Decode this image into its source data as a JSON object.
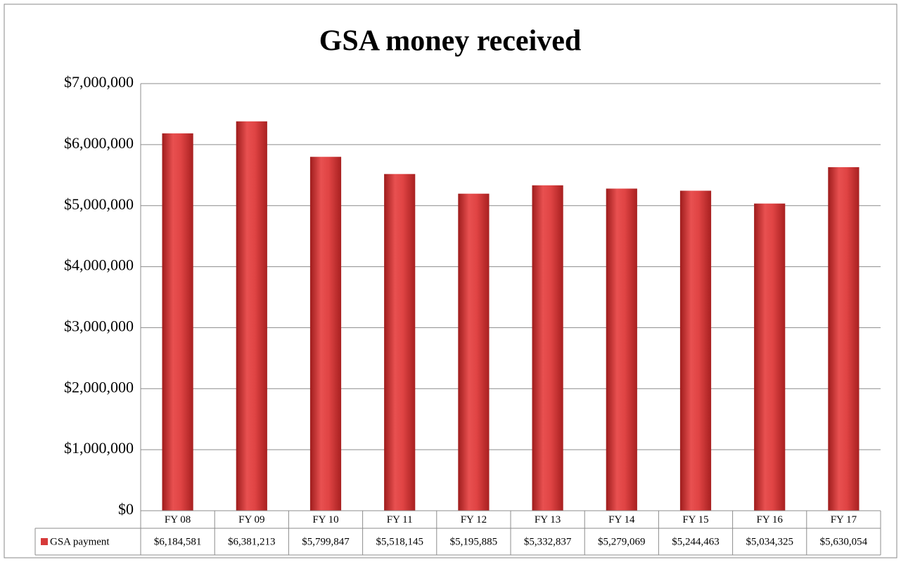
{
  "chart_data": {
    "type": "bar",
    "title": "GSA money received",
    "categories": [
      "FY 08",
      "FY 09",
      "FY 10",
      "FY 11",
      "FY 12",
      "FY 13",
      "FY 14",
      "FY 15",
      "FY 16",
      "FY 17"
    ],
    "series": [
      {
        "name": "GSA payment",
        "color": "#d63a3a",
        "values": [
          6184581,
          6381213,
          5799847,
          5518145,
          5195885,
          5332837,
          5279069,
          5244463,
          5034325,
          5630054
        ],
        "value_labels": [
          "$6,184,581",
          "$6,381,213",
          "$5,799,847",
          "$5,518,145",
          "$5,195,885",
          "$5,332,837",
          "$5,279,069",
          "$5,244,463",
          "$5,034,325",
          "$5,630,054"
        ]
      }
    ],
    "ylim": [
      0,
      7000000
    ],
    "yticks": [
      {
        "value": 0,
        "label": "$0"
      },
      {
        "value": 1000000,
        "label": "$1,000,000"
      },
      {
        "value": 2000000,
        "label": "$2,000,000"
      },
      {
        "value": 3000000,
        "label": "$3,000,000"
      },
      {
        "value": 4000000,
        "label": "$4,000,000"
      },
      {
        "value": 5000000,
        "label": "$5,000,000"
      },
      {
        "value": 6000000,
        "label": "$6,000,000"
      },
      {
        "value": 7000000,
        "label": "$7,000,000"
      }
    ],
    "grid": true,
    "data_table": true
  }
}
